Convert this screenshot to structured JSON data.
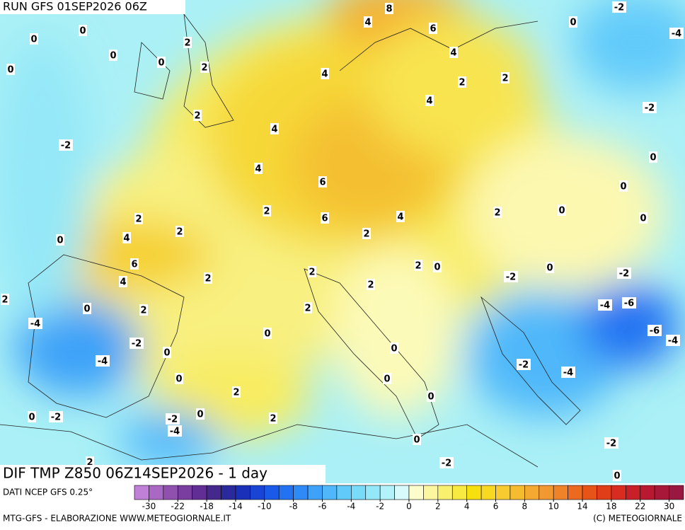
{
  "header": {
    "run": "RUN GFS 01SEP2026 06Z"
  },
  "map": {
    "title": "DIF TMP Z850 06Z14SEP2026 - 1 day",
    "contour_labels": [
      8,
      4,
      6,
      0,
      0,
      2,
      0,
      4,
      0,
      0,
      2,
      4,
      2,
      2,
      4,
      2,
      4,
      -2,
      4,
      6,
      2,
      2,
      6,
      4,
      2,
      2,
      0,
      2,
      0,
      4,
      6,
      2,
      0,
      2,
      0,
      2,
      4,
      2,
      -2,
      2,
      0,
      2,
      2,
      -4,
      0,
      -2,
      0,
      0,
      -4,
      -2,
      -4,
      0,
      0,
      2,
      0,
      0,
      -2,
      0,
      -2,
      2,
      -4,
      0,
      -2,
      -2,
      2,
      0,
      -2,
      0,
      -4,
      -2,
      0,
      0,
      0,
      -2,
      -4,
      -6,
      -6,
      -4
    ]
  },
  "footer": {
    "source": "DATI NCEP GFS 0.25°",
    "credit": "MTG-GFS - ELABORAZIONE WWW.METEOGIORNALE.IT",
    "copyright": "(C) METEOGIORNALE"
  },
  "colorbar": {
    "colors": [
      "#c080d8",
      "#a868c4",
      "#9050b0",
      "#7a3ea0",
      "#602e94",
      "#44288c",
      "#2a2a9c",
      "#1a30b8",
      "#1a44d4",
      "#1a5ae8",
      "#2272f2",
      "#2e8af6",
      "#3ea2f8",
      "#50b8fa",
      "#62cafa",
      "#78dcf8",
      "#94e8f8",
      "#b4f2fa",
      "#d8fafc",
      "#fdfccc",
      "#fcf6a0",
      "#faf070",
      "#f8ea40",
      "#f6e010",
      "#f8d820",
      "#f8cc30",
      "#f6bc30",
      "#f4aa30",
      "#f29830",
      "#f08228",
      "#ec6a20",
      "#e85418",
      "#e03e18",
      "#d82c20",
      "#c82028",
      "#b81830",
      "#a81838",
      "#981840"
    ],
    "ticks": [
      -30,
      -22,
      -18,
      -14,
      -10,
      -8,
      -6,
      -4,
      -2,
      0,
      2,
      4,
      6,
      8,
      10,
      14,
      18,
      22,
      30
    ]
  }
}
